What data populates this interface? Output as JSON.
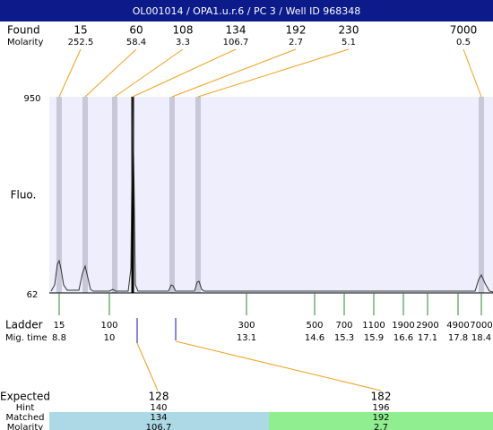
{
  "header": {
    "title": "OL001014 / OPA1.u.r.6 / PC 3 / Well ID 968348"
  },
  "found": {
    "label": "Found",
    "molarity_label": "Molarity",
    "peaks": [
      {
        "size": "15",
        "molarity": "252.5"
      },
      {
        "size": "60",
        "molarity": "58.4"
      },
      {
        "size": "108",
        "molarity": "3.3"
      },
      {
        "size": "134",
        "molarity": "106.7"
      },
      {
        "size": "192",
        "molarity": "2.7"
      },
      {
        "size": "230",
        "molarity": "5.1"
      },
      {
        "size": "7000",
        "molarity": "0.5"
      }
    ]
  },
  "axis": {
    "label": "Fluo.",
    "max": "950",
    "min": "62"
  },
  "ladder": {
    "label": "Ladder",
    "time_label": "Mig. time",
    "peaks": [
      {
        "size": "15",
        "time": "8.8"
      },
      {
        "size": "100",
        "time": "10"
      },
      {
        "size": "300",
        "time": "13.1"
      },
      {
        "size": "500",
        "time": "14.6"
      },
      {
        "size": "700",
        "time": "15.3"
      },
      {
        "size": "1100",
        "time": "15.9"
      },
      {
        "size": "1900",
        "time": "16.6"
      },
      {
        "size": "2900",
        "time": "17.1"
      },
      {
        "size": "4900",
        "time": "17.8"
      },
      {
        "size": "7000",
        "time": "18.4"
      }
    ]
  },
  "expected": {
    "labels": {
      "expected": "Expected",
      "hint": "Hint",
      "matched": "Matched",
      "molarity": "Molarity"
    },
    "items": [
      {
        "expected": "128",
        "hint": "140",
        "matched": "134",
        "molarity": "106.7"
      },
      {
        "expected": "182",
        "hint": "196",
        "matched": "192",
        "molarity": "2.7"
      }
    ]
  }
}
